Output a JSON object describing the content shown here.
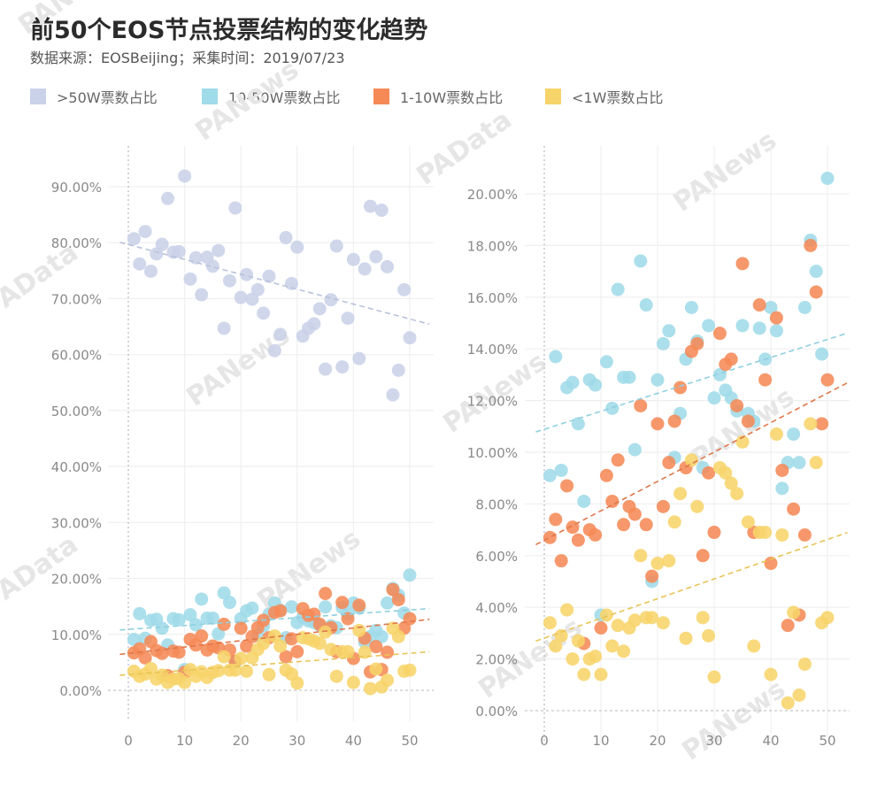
{
  "header": {
    "title": "前50个EOS节点投票结构的变化趋势",
    "subtitle": "数据来源：EOSBeijing；采集时间：2019/07/23"
  },
  "legend": [
    {
      "label": ">50W票数占比",
      "color": "#c9d2e8"
    },
    {
      "label": "10-50W票数占比",
      "color": "#9fdbe8"
    },
    {
      "label": "1-10W票数占比",
      "color": "#f58a57"
    },
    {
      "label": "<1W票数占比",
      "color": "#f7d46a"
    }
  ],
  "watermarks": [
    "PANews",
    "PAData"
  ],
  "chart_data": [
    {
      "type": "scatter",
      "title": "",
      "xlabel": "",
      "ylabel": "",
      "xlim": [
        -2,
        54
      ],
      "ylim": [
        -2,
        95
      ],
      "x_ticks": [
        "0",
        "10",
        "20",
        "30",
        "40",
        "50"
      ],
      "x_tick_values": [
        0,
        10,
        20,
        30,
        40,
        50
      ],
      "y_ticks": [
        "0.00%",
        "10.00%",
        "20.00%",
        "30.00%",
        "40.00%",
        "50.00%",
        "60.00%",
        "70.00%",
        "80.00%",
        "90.00%"
      ],
      "y_tick_values": [
        0,
        10,
        20,
        30,
        40,
        50,
        60,
        70,
        80,
        90
      ],
      "grid": true,
      "trendlines": true,
      "series_refs": [
        "gt50w",
        "w10_50",
        "w1_10",
        "lt1w"
      ]
    },
    {
      "type": "scatter",
      "title": "",
      "xlabel": "",
      "ylabel": "",
      "xlim": [
        -2,
        54
      ],
      "ylim": [
        -0.5,
        21.5
      ],
      "x_ticks": [
        "0",
        "10",
        "20",
        "30",
        "40",
        "50"
      ],
      "x_tick_values": [
        0,
        10,
        20,
        30,
        40,
        50
      ],
      "y_ticks": [
        "0.00%",
        "2.00%",
        "4.00%",
        "6.00%",
        "8.00%",
        "10.00%",
        "12.00%",
        "14.00%",
        "16.00%",
        "18.00%",
        "20.00%"
      ],
      "y_tick_values": [
        0,
        2,
        4,
        6,
        8,
        10,
        12,
        14,
        16,
        18,
        20
      ],
      "grid": true,
      "trendlines": true,
      "series_refs": [
        "w10_50",
        "w1_10",
        "lt1w"
      ]
    }
  ],
  "series": {
    "gt50w": {
      "name": ">50W票数占比",
      "color": "#c9d2e8",
      "trend_color": "#b9c2dc",
      "x": [
        1,
        2,
        3,
        4,
        5,
        6,
        7,
        8,
        9,
        10,
        11,
        12,
        13,
        14,
        15,
        16,
        17,
        18,
        19,
        20,
        21,
        22,
        23,
        24,
        25,
        26,
        27,
        28,
        29,
        30,
        31,
        32,
        33,
        34,
        35,
        36,
        37,
        38,
        39,
        40,
        41,
        42,
        43,
        44,
        45,
        46,
        47,
        48,
        49,
        50
      ],
      "values": [
        80.7,
        76.2,
        82.0,
        74.9,
        78.0,
        79.7,
        87.9,
        78.3,
        78.4,
        91.9,
        73.5,
        77.3,
        70.7,
        77.4,
        75.8,
        78.6,
        64.7,
        73.2,
        86.2,
        70.2,
        74.3,
        69.9,
        71.6,
        67.4,
        74.0,
        60.7,
        63.6,
        80.9,
        72.7,
        79.2,
        63.3,
        64.7,
        65.5,
        68.2,
        57.4,
        69.8,
        79.4,
        57.8,
        66.5,
        77.0,
        59.3,
        75.3,
        86.5,
        77.5,
        85.8,
        75.7,
        52.8,
        57.2,
        71.6,
        63.0
      ]
    },
    "w10_50": {
      "name": "10-50W票数占比",
      "color": "#9fdbe8",
      "trend_color": "#8fcfe0",
      "x": [
        1,
        2,
        3,
        4,
        5,
        6,
        7,
        8,
        9,
        10,
        11,
        12,
        13,
        14,
        15,
        16,
        17,
        18,
        19,
        20,
        21,
        22,
        23,
        24,
        25,
        26,
        27,
        28,
        29,
        30,
        31,
        32,
        33,
        34,
        35,
        36,
        37,
        38,
        39,
        40,
        41,
        42,
        43,
        44,
        45,
        46,
        47,
        48,
        49,
        50
      ],
      "values": [
        9.1,
        13.7,
        9.3,
        12.5,
        12.7,
        11.1,
        8.1,
        12.8,
        12.6,
        3.7,
        13.5,
        11.7,
        16.3,
        12.9,
        12.9,
        10.1,
        17.4,
        15.7,
        5.0,
        12.8,
        14.2,
        14.7,
        9.8,
        11.5,
        13.6,
        15.6,
        14.3,
        9.4,
        14.9,
        12.1,
        13.0,
        12.4,
        12.1,
        11.6,
        14.9,
        11.5,
        11.2,
        14.8,
        13.6,
        15.6,
        14.7,
        8.6,
        9.6,
        10.7,
        9.6,
        15.6,
        18.2,
        17.0,
        13.8,
        20.6
      ]
    },
    "w1_10": {
      "name": "1-10W票数占比",
      "color": "#f58a57",
      "trend_color": "#e0774a",
      "x": [
        1,
        2,
        3,
        4,
        5,
        6,
        7,
        8,
        9,
        10,
        11,
        12,
        13,
        14,
        15,
        16,
        17,
        18,
        19,
        20,
        21,
        22,
        23,
        24,
        25,
        26,
        27,
        28,
        29,
        30,
        31,
        32,
        33,
        34,
        35,
        36,
        37,
        38,
        39,
        40,
        41,
        42,
        43,
        44,
        45,
        46,
        47,
        48,
        49,
        50
      ],
      "values": [
        6.7,
        7.4,
        5.8,
        8.7,
        7.1,
        6.6,
        2.6,
        7.0,
        6.8,
        3.2,
        9.1,
        8.1,
        9.7,
        7.2,
        7.9,
        7.6,
        11.8,
        7.2,
        5.2,
        11.1,
        7.9,
        9.6,
        11.2,
        12.5,
        9.4,
        13.9,
        14.2,
        6.0,
        9.2,
        6.9,
        14.6,
        13.4,
        13.6,
        11.8,
        17.3,
        11.2,
        6.9,
        15.7,
        12.8,
        5.7,
        15.2,
        9.3,
        3.3,
        7.8,
        3.7,
        6.8,
        18.0,
        16.2,
        11.1,
        12.8
      ]
    },
    "lt1w": {
      "name": "<1W票数占比",
      "color": "#f7d46a",
      "trend_color": "#e8c454",
      "x": [
        1,
        2,
        3,
        4,
        5,
        6,
        7,
        8,
        9,
        10,
        11,
        12,
        13,
        14,
        15,
        16,
        17,
        18,
        19,
        20,
        21,
        22,
        23,
        24,
        25,
        26,
        27,
        28,
        29,
        30,
        31,
        32,
        33,
        34,
        35,
        36,
        37,
        38,
        39,
        40,
        41,
        42,
        43,
        44,
        45,
        46,
        47,
        48,
        49,
        50
      ],
      "values": [
        3.4,
        2.5,
        2.9,
        3.9,
        2.0,
        2.7,
        1.4,
        2.0,
        2.1,
        1.4,
        3.7,
        2.5,
        3.3,
        2.3,
        3.2,
        3.5,
        6.0,
        3.6,
        3.6,
        5.7,
        3.4,
        5.8,
        7.3,
        8.4,
        2.8,
        9.7,
        7.9,
        3.6,
        2.9,
        1.3,
        9.4,
        9.2,
        8.8,
        8.4,
        10.4,
        7.3,
        2.5,
        6.9,
        6.9,
        1.4,
        10.7,
        6.8,
        0.3,
        3.8,
        0.6,
        1.8,
        11.1,
        9.6,
        3.4,
        3.6
      ]
    }
  }
}
